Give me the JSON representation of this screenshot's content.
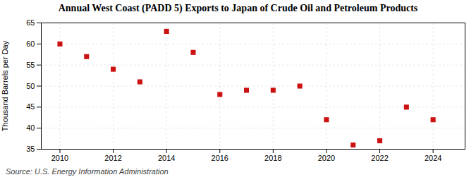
{
  "chart_data": {
    "type": "scatter",
    "title": "Annual West Coast (PADD 5) Exports to Japan of Crude Oil and Petroleum Products",
    "ylabel": "Thousand Barrels per Day",
    "source": "Source: U.S. Energy Information Administration",
    "x": [
      2010,
      2011,
      2012,
      2013,
      2014,
      2015,
      2016,
      2017,
      2018,
      2019,
      2020,
      2021,
      2022,
      2023,
      2024
    ],
    "values": [
      60.0,
      57.0,
      54.0,
      51.0,
      63.0,
      58.0,
      48.0,
      49.0,
      49.0,
      50.0,
      42.0,
      36.0,
      37.0,
      45.0,
      42.0
    ],
    "xlim": [
      2009.3,
      2025.2
    ],
    "xticks": [
      2010,
      2012,
      2014,
      2016,
      2018,
      2020,
      2022,
      2024
    ],
    "ylim": [
      35,
      65
    ],
    "yticks": [
      35,
      40,
      45,
      50,
      55,
      60,
      65
    ],
    "color": "#cc1111",
    "marker": "square",
    "grid": true
  }
}
